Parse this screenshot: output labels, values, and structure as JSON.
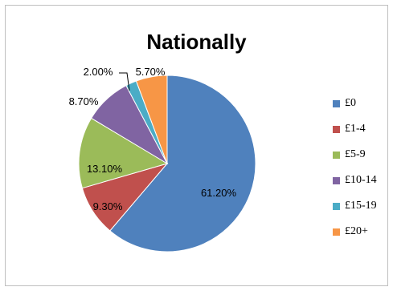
{
  "chart_data": {
    "type": "pie",
    "title": "Nationally",
    "categories": [
      "£0",
      "£1-4",
      "£5-9",
      "£10-14",
      "£15-19",
      "£20+"
    ],
    "values": [
      61.2,
      9.3,
      13.1,
      8.7,
      2.0,
      5.7
    ],
    "value_labels": [
      "61.20%",
      "9.30%",
      "13.10%",
      "8.70%",
      "2.00%",
      "5.70%"
    ],
    "colors": [
      "#4f81bd",
      "#c0504d",
      "#9bbb59",
      "#8064a2",
      "#4bacc6",
      "#f79646"
    ],
    "legend_position": "right",
    "start": "top",
    "direction": "clockwise"
  }
}
